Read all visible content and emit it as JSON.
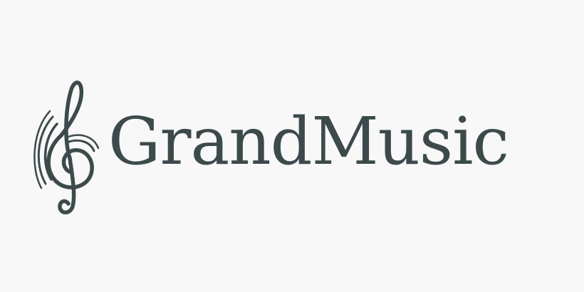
{
  "brand": {
    "name": "GrandMusic",
    "color": "#3d4a4c",
    "background": "#f7f8f7",
    "icon": "treble-clef-icon"
  }
}
